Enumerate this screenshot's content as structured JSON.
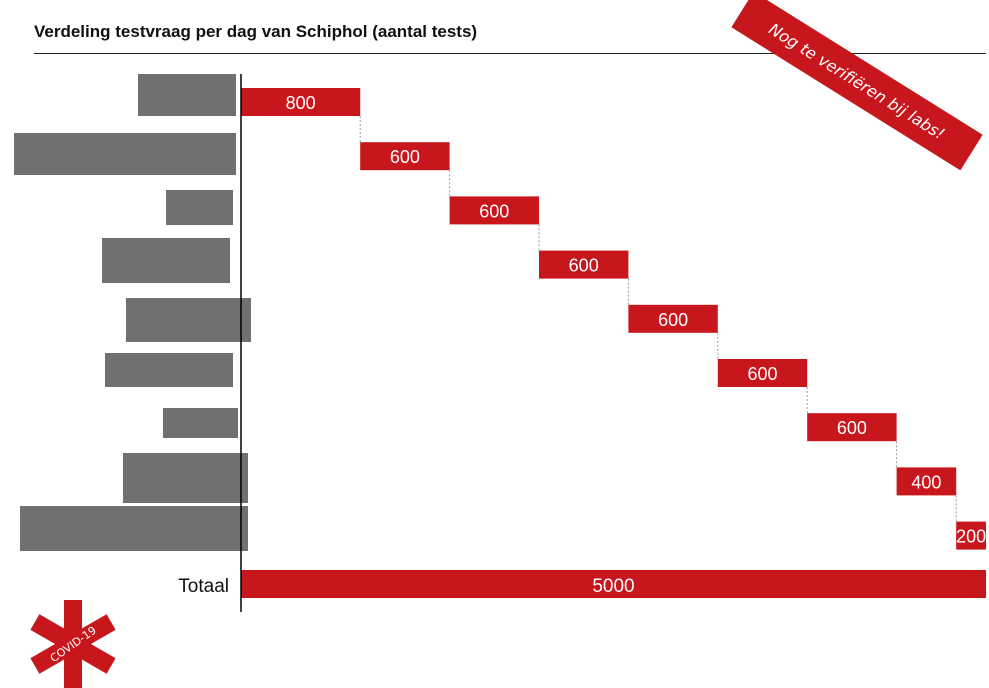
{
  "title": "Verdeling testvraag per dag van Schiphol (aantal tests)",
  "stamp": "Nog te verifiëren bij labs!",
  "logo_text": "COVID-19",
  "colors": {
    "accent": "#c8161d",
    "bar_gray": "#707070",
    "axis": "#000000",
    "text": "#111111"
  },
  "chart_data": {
    "type": "bar",
    "subtype": "waterfall",
    "series": [
      {
        "values": [
          800,
          600,
          600,
          600,
          600,
          600,
          600,
          400,
          200
        ]
      }
    ],
    "total": {
      "label": "Totaal",
      "value": 5000
    },
    "category_labels_visible": false,
    "left_gray_bars_note": "",
    "legend": "none",
    "grid": false
  }
}
